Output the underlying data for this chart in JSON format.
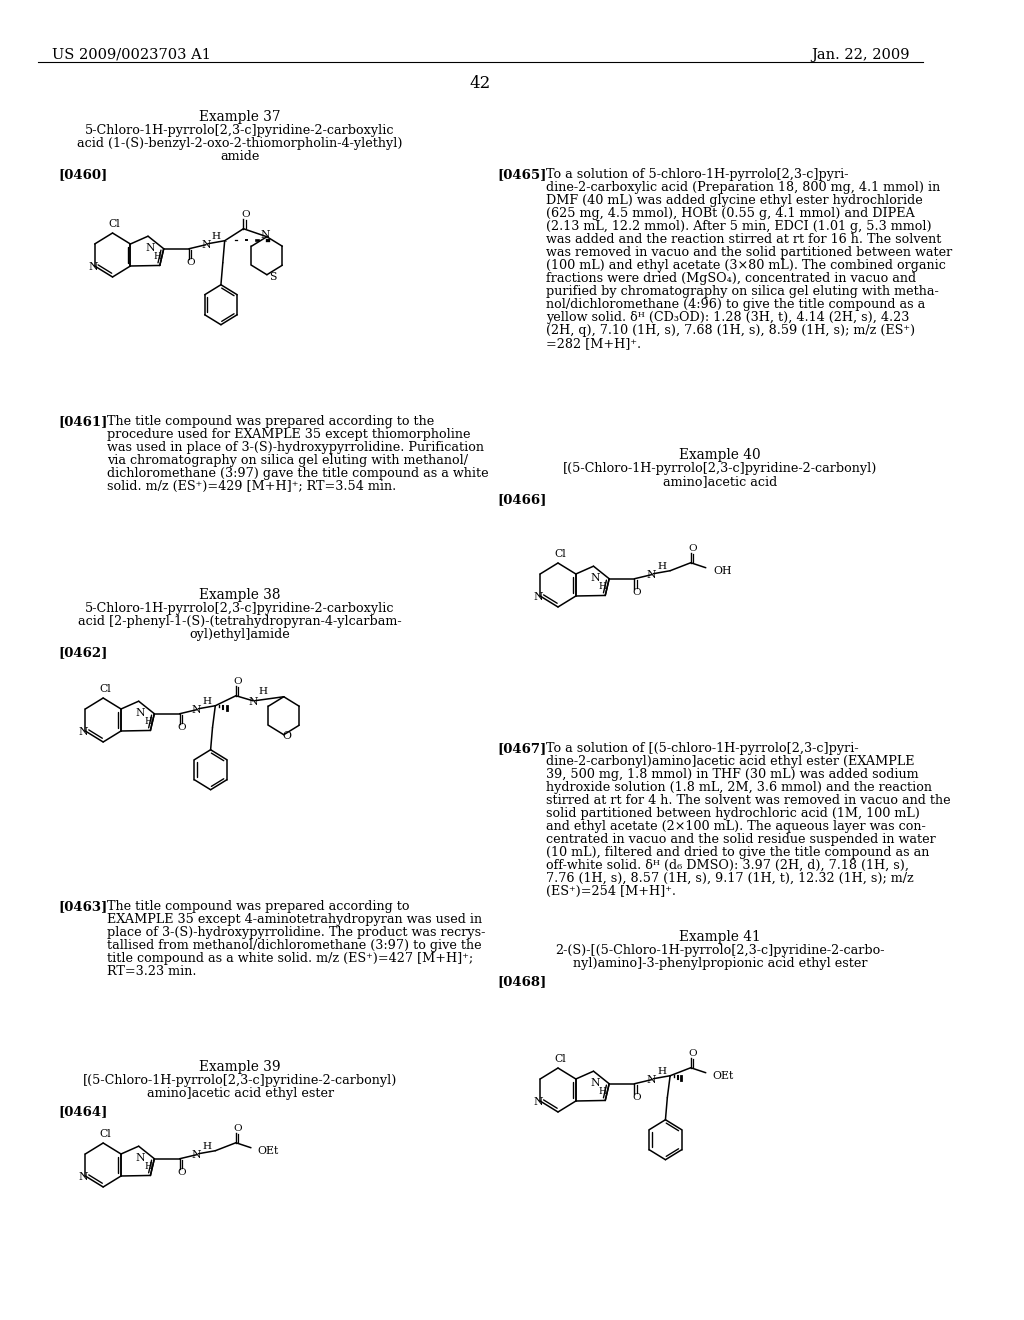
{
  "page_header_left": "US 2009/0023703 A1",
  "page_header_right": "Jan. 22, 2009",
  "page_number": "42",
  "background_color": "#ffffff",
  "text_color": "#000000"
}
